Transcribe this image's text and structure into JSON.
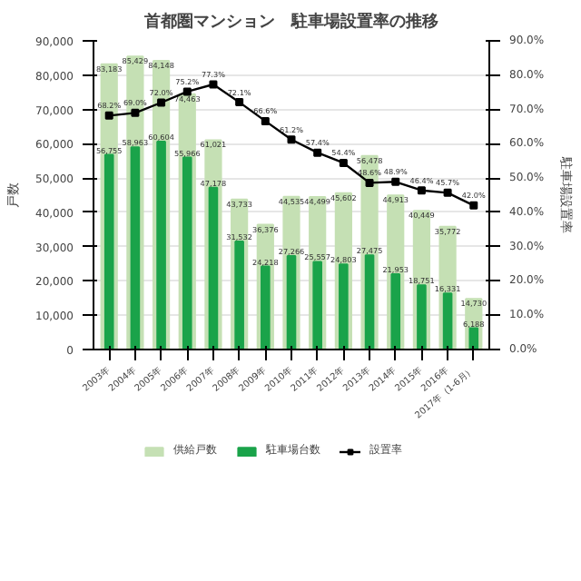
{
  "chart_data": {
    "type": "bar",
    "title": "首都圏マンション　駐車場設置率の推移",
    "ylabel": "戸数",
    "y2label": "駐車場設置率",
    "categories": [
      "2003年",
      "2004年",
      "2005年",
      "2006年",
      "2007年",
      "2008年",
      "2009年",
      "2010年",
      "2011年",
      "2012年",
      "2013年",
      "2014年",
      "2015年",
      "2016年",
      "2017年（1-6月）"
    ],
    "series": [
      {
        "name": "供給戸数",
        "color": "#c5e0b4",
        "values": [
          83183,
          85429,
          84148,
          74463,
          61021,
          43733,
          36376,
          44535,
          44499,
          45602,
          56478,
          44913,
          40449,
          35772,
          14730
        ],
        "value_labels": [
          "83,183",
          "85,429",
          "84,148",
          "74,463",
          "61,021",
          "43,733",
          "36,376",
          "44,535",
          "44,499",
          "45,602",
          "56,478",
          "44,913",
          "40,449",
          "35,772",
          "14,730"
        ]
      },
      {
        "name": "駐車場台数",
        "color": "#1aa34a",
        "values": [
          56755,
          58963,
          60604,
          55966,
          47178,
          31532,
          24218,
          27266,
          25557,
          24803,
          27475,
          21953,
          18751,
          16331,
          6188
        ],
        "value_labels": [
          "56,755",
          "58,963",
          "60,604",
          "55,966",
          "47,178",
          "31,532",
          "24,218",
          "27,266",
          "25,557",
          "24,803",
          "27,475",
          "21,953",
          "18,751",
          "16,331",
          "6,188"
        ]
      },
      {
        "name": "設置率",
        "type": "line",
        "axis": "y2",
        "color": "#000000",
        "marker": "square",
        "values": [
          68.2,
          69.0,
          72.0,
          75.2,
          77.3,
          72.1,
          66.6,
          61.2,
          57.4,
          54.4,
          48.6,
          48.9,
          46.4,
          45.7,
          42.0
        ],
        "value_labels": [
          "68.2%",
          "69.0%",
          "72.0%",
          "75.2%",
          "77.3%",
          "72.1%",
          "66.6%",
          "61.2%",
          "57.4%",
          "54.4%",
          "48.6%",
          "48.9%",
          "46.4%",
          "45.7%",
          "42.0%"
        ]
      }
    ],
    "ylim": [
      0,
      90000
    ],
    "yticks": [
      {
        "value": 0,
        "label": "0"
      },
      {
        "value": 10000,
        "label": "10,000"
      },
      {
        "value": 20000,
        "label": "20,000"
      },
      {
        "value": 30000,
        "label": "30,000"
      },
      {
        "value": 40000,
        "label": "40,000"
      },
      {
        "value": 50000,
        "label": "50,000"
      },
      {
        "value": 60000,
        "label": "60,000"
      },
      {
        "value": 70000,
        "label": "70,000"
      },
      {
        "value": 80000,
        "label": "80,000"
      },
      {
        "value": 90000,
        "label": "90,000"
      }
    ],
    "y2lim": [
      0,
      90
    ],
    "y2ticks": [
      {
        "value": 0,
        "label": "0.0%"
      },
      {
        "value": 10,
        "label": "10.0%"
      },
      {
        "value": 20,
        "label": "20.0%"
      },
      {
        "value": 30,
        "label": "30.0%"
      },
      {
        "value": 40,
        "label": "40.0%"
      },
      {
        "value": 50,
        "label": "50.0%"
      },
      {
        "value": 60,
        "label": "60.0%"
      },
      {
        "value": 70,
        "label": "70.0%"
      },
      {
        "value": 80,
        "label": "80.0%"
      },
      {
        "value": 90,
        "label": "90.0%"
      }
    ],
    "grid": "y",
    "legend": "bottom"
  }
}
